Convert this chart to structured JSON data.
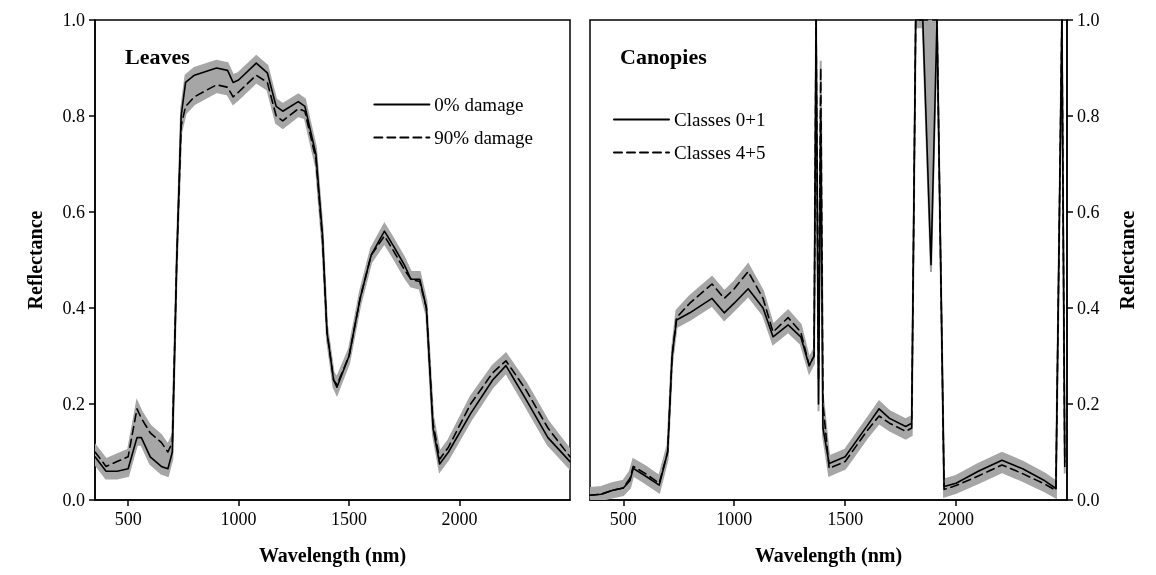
{
  "chart_data": [
    {
      "type": "line",
      "title": "Leaves",
      "xlabel": "Wavelength (nm)",
      "ylabel": "Reflectance",
      "x": [
        350,
        400,
        450,
        500,
        540,
        560,
        600,
        650,
        680,
        700,
        720,
        740,
        760,
        800,
        900,
        950,
        975,
        1000,
        1080,
        1130,
        1170,
        1200,
        1270,
        1300,
        1350,
        1380,
        1400,
        1430,
        1445,
        1500,
        1550,
        1600,
        1660,
        1700,
        1750,
        1780,
        1820,
        1850,
        1880,
        1910,
        1950,
        2050,
        2150,
        2210,
        2300,
        2400,
        2500
      ],
      "series": [
        {
          "name": "0% damage",
          "color": "#000000",
          "line_style": "solid",
          "values": [
            0.09,
            0.06,
            0.06,
            0.065,
            0.13,
            0.13,
            0.09,
            0.07,
            0.065,
            0.1,
            0.5,
            0.8,
            0.87,
            0.885,
            0.9,
            0.895,
            0.87,
            0.875,
            0.91,
            0.89,
            0.82,
            0.81,
            0.83,
            0.82,
            0.72,
            0.55,
            0.35,
            0.25,
            0.235,
            0.3,
            0.42,
            0.51,
            0.56,
            0.53,
            0.49,
            0.46,
            0.46,
            0.4,
            0.15,
            0.075,
            0.1,
            0.18,
            0.25,
            0.28,
            0.21,
            0.13,
            0.08
          ],
          "lower": [
            0.075,
            0.045,
            0.045,
            0.05,
            0.115,
            0.115,
            0.075,
            0.055,
            0.05,
            0.085,
            0.485,
            0.765,
            0.805,
            0.825,
            0.85,
            0.845,
            0.825,
            0.835,
            0.87,
            0.855,
            0.785,
            0.775,
            0.8,
            0.795,
            0.695,
            0.525,
            0.335,
            0.235,
            0.22,
            0.285,
            0.405,
            0.495,
            0.535,
            0.505,
            0.465,
            0.445,
            0.44,
            0.385,
            0.135,
            0.06,
            0.085,
            0.165,
            0.235,
            0.265,
            0.195,
            0.115,
            0.065
          ],
          "upper": [
            0.115,
            0.085,
            0.095,
            0.105,
            0.205,
            0.185,
            0.155,
            0.135,
            0.115,
            0.135,
            0.515,
            0.815,
            0.885,
            0.9,
            0.915,
            0.91,
            0.885,
            0.89,
            0.925,
            0.905,
            0.835,
            0.825,
            0.845,
            0.835,
            0.735,
            0.565,
            0.365,
            0.265,
            0.255,
            0.315,
            0.435,
            0.525,
            0.575,
            0.545,
            0.505,
            0.475,
            0.475,
            0.415,
            0.175,
            0.1,
            0.125,
            0.215,
            0.28,
            0.305,
            0.245,
            0.165,
            0.105
          ]
        },
        {
          "name": "90% damage",
          "color": "#000000",
          "line_style": "dashed",
          "values": [
            0.1,
            0.07,
            0.08,
            0.09,
            0.19,
            0.17,
            0.14,
            0.12,
            0.1,
            0.12,
            0.5,
            0.78,
            0.82,
            0.84,
            0.865,
            0.86,
            0.84,
            0.85,
            0.885,
            0.87,
            0.8,
            0.79,
            0.815,
            0.81,
            0.71,
            0.54,
            0.35,
            0.25,
            0.24,
            0.3,
            0.42,
            0.51,
            0.55,
            0.52,
            0.48,
            0.46,
            0.455,
            0.4,
            0.16,
            0.085,
            0.11,
            0.2,
            0.265,
            0.29,
            0.23,
            0.15,
            0.09
          ]
        }
      ],
      "xlim": [
        350,
        2500
      ],
      "xticks": [
        500,
        1000,
        1500,
        2000
      ],
      "ylim": [
        0,
        1
      ],
      "yticks": [
        {
          "value": 0,
          "label": "0.0"
        },
        {
          "value": 0.2,
          "label": "0.2"
        },
        {
          "value": 0.4,
          "label": "0.4"
        },
        {
          "value": 0.6,
          "label": "0.6"
        },
        {
          "value": 0.8,
          "label": "0.8"
        },
        {
          "value": 1,
          "label": "1.0"
        }
      ],
      "grid": false,
      "marker": "none",
      "legend": "top right"
    },
    {
      "type": "line",
      "title": "Canopies",
      "xlabel": "Wavelength (nm)",
      "y2label": "Reflectance",
      "x": [
        350,
        400,
        450,
        500,
        530,
        545,
        600,
        662,
        700,
        720,
        740,
        800,
        900,
        955,
        1000,
        1063,
        1130,
        1175,
        1243,
        1300,
        1338,
        1360,
        1369,
        1380,
        1390,
        1400,
        1428,
        1500,
        1600,
        1653,
        1700,
        1773,
        1800,
        1818,
        1850,
        1887,
        1914,
        1946,
        2000,
        2100,
        2207,
        2300,
        2400,
        2450,
        2477,
        2490
      ],
      "series": [
        {
          "name": "Classes 0+1",
          "color": "#000000",
          "line_style": "solid",
          "axis": "y2",
          "values": [
            0.01,
            0.012,
            0.02,
            0.025,
            0.04,
            0.066,
            0.05,
            0.031,
            0.1,
            0.3,
            0.375,
            0.39,
            0.42,
            0.39,
            0.41,
            0.44,
            0.4,
            0.34,
            0.365,
            0.34,
            0.28,
            0.3,
            1.0,
            0.2,
            0.8,
            0.15,
            0.076,
            0.09,
            0.155,
            0.19,
            0.17,
            0.153,
            0.16,
            1.0,
            1.0,
            0.49,
            1.0,
            0.028,
            0.035,
            0.06,
            0.083,
            0.065,
            0.04,
            0.024,
            1.0,
            0.08
          ],
          "lower": [
            0,
            0,
            0.005,
            0.01,
            0.025,
            0.051,
            0.035,
            0.016,
            0.085,
            0.285,
            0.36,
            0.375,
            0.405,
            0.375,
            0.395,
            0.425,
            0.385,
            0.325,
            0.35,
            0.325,
            0.265,
            0.285,
            0.985,
            0.185,
            0.785,
            0.135,
            0.051,
            0.065,
            0.13,
            0.16,
            0.145,
            0.128,
            0.135,
            0.985,
            0.985,
            0.475,
            0.985,
            0.007,
            0.015,
            0.035,
            0.058,
            0.04,
            0.018,
            0.005,
            0.985,
            0.055
          ],
          "upper": [
            0.025,
            0.027,
            0.035,
            0.04,
            0.06,
            0.085,
            0.07,
            0.05,
            0.115,
            0.315,
            0.395,
            0.425,
            0.465,
            0.435,
            0.455,
            0.491,
            0.435,
            0.365,
            0.395,
            0.365,
            0.295,
            0.315,
            1,
            0.265,
            0.915,
            0.215,
            0.091,
            0.105,
            0.17,
            0.205,
            0.185,
            0.168,
            0.175,
            1,
            1,
            1,
            1,
            0.043,
            0.05,
            0.075,
            0.098,
            0.08,
            0.055,
            0.039,
            1,
            0.095
          ]
        },
        {
          "name": "Classes 4+5",
          "color": "#000000",
          "line_style": "dashed",
          "axis": "y2",
          "values": [
            0.01,
            0.012,
            0.02,
            0.025,
            0.045,
            0.07,
            0.055,
            0.035,
            0.1,
            0.3,
            0.38,
            0.41,
            0.45,
            0.42,
            0.44,
            0.476,
            0.42,
            0.35,
            0.38,
            0.35,
            0.28,
            0.3,
            1.0,
            0.25,
            0.9,
            0.2,
            0.066,
            0.08,
            0.145,
            0.175,
            0.16,
            0.143,
            0.15,
            1.0,
            1.0,
            1.0,
            1.0,
            0.022,
            0.03,
            0.05,
            0.073,
            0.055,
            0.033,
            0.02,
            1.0,
            0.07
          ]
        }
      ],
      "xlim": [
        350,
        2500
      ],
      "xticks": [
        500,
        1000,
        1500,
        2000
      ],
      "y2lim": [
        0,
        1
      ],
      "y2ticks": [
        {
          "value": 0,
          "label": "0.0"
        },
        {
          "value": 0.2,
          "label": "0.2"
        },
        {
          "value": 0.4,
          "label": "0.4"
        },
        {
          "value": 0.6,
          "label": "0.6"
        },
        {
          "value": 0.8,
          "label": "0.8"
        },
        {
          "value": 1,
          "label": "1.0"
        }
      ],
      "grid": false,
      "marker": "none",
      "legend": "top left"
    }
  ]
}
